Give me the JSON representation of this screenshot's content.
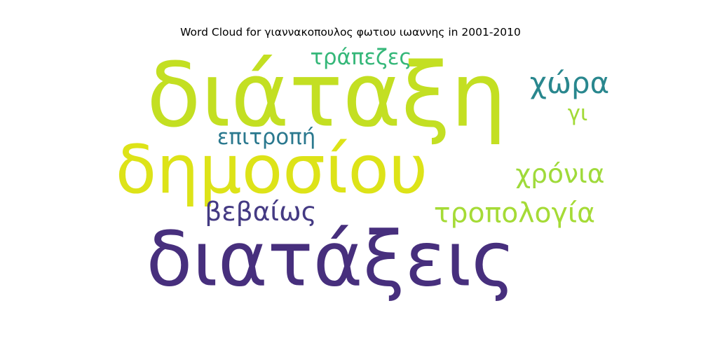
{
  "chart_data": {
    "type": "wordcloud",
    "title": "Word Cloud for γιαννακοπουλος φωτιου ιωαννης in 2001-2010",
    "words": [
      {
        "text": "διάταξη",
        "color": "#c3df22"
      },
      {
        "text": "διατάξεις",
        "color": "#472f7d"
      },
      {
        "text": "δημοσίου",
        "color": "#dde318"
      },
      {
        "text": "τράπεζες",
        "color": "#35b779"
      },
      {
        "text": "χώρα",
        "color": "#29878e"
      },
      {
        "text": "γι",
        "color": "#a2da37"
      },
      {
        "text": "επιτροπή",
        "color": "#2a788e"
      },
      {
        "text": "χρόνια",
        "color": "#9fda3a"
      },
      {
        "text": "βεβαίως",
        "color": "#443a83"
      },
      {
        "text": "τροπολογία",
        "color": "#a5db36"
      }
    ]
  }
}
